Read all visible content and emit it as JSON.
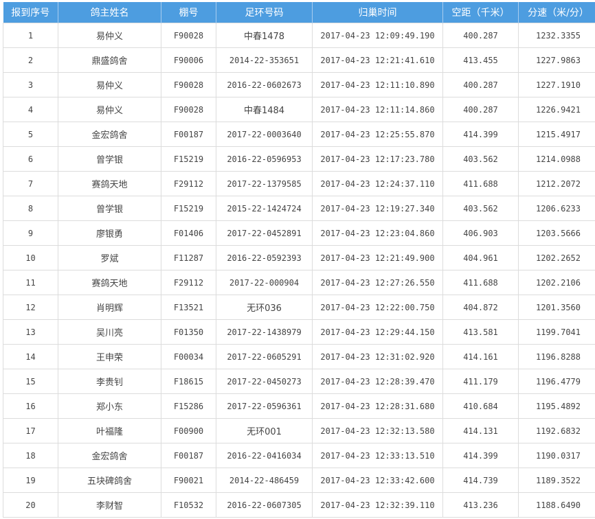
{
  "header_color": "#4d9de0",
  "columns": [
    "报到序号",
    "鸽主姓名",
    "棚号",
    "足环号码",
    "归巢时间",
    "空距（千米）",
    "分速（米/分）"
  ],
  "rows": [
    [
      "1",
      "易仲义",
      "F90028",
      "中春1478",
      "2017-04-23 12:09:49.190",
      "400.287",
      "1232.3355"
    ],
    [
      "2",
      "鼎盛鸽舍",
      "F90006",
      "2014-22-353651",
      "2017-04-23 12:21:41.610",
      "413.455",
      "1227.9863"
    ],
    [
      "3",
      "易仲义",
      "F90028",
      "2016-22-0602673",
      "2017-04-23 12:11:10.890",
      "400.287",
      "1227.1910"
    ],
    [
      "4",
      "易仲义",
      "F90028",
      "中春1484",
      "2017-04-23 12:11:14.860",
      "400.287",
      "1226.9421"
    ],
    [
      "5",
      "金宏鸽舍",
      "F00187",
      "2017-22-0003640",
      "2017-04-23 12:25:55.870",
      "414.399",
      "1215.4917"
    ],
    [
      "6",
      "曾学银",
      "F15219",
      "2016-22-0596953",
      "2017-04-23 12:17:23.780",
      "403.562",
      "1214.0988"
    ],
    [
      "7",
      "赛鸽天地",
      "F29112",
      "2017-22-1379585",
      "2017-04-23 12:24:37.110",
      "411.688",
      "1212.2072"
    ],
    [
      "8",
      "曾学银",
      "F15219",
      "2015-22-1424724",
      "2017-04-23 12:19:27.340",
      "403.562",
      "1206.6233"
    ],
    [
      "9",
      "廖银勇",
      "F01406",
      "2017-22-0452891",
      "2017-04-23 12:23:04.860",
      "406.903",
      "1203.5666"
    ],
    [
      "10",
      "罗斌",
      "F11287",
      "2016-22-0592393",
      "2017-04-23 12:21:49.900",
      "404.961",
      "1202.2652"
    ],
    [
      "11",
      "赛鸽天地",
      "F29112",
      "2017-22-000904",
      "2017-04-23 12:27:26.550",
      "411.688",
      "1202.2106"
    ],
    [
      "12",
      "肖明辉",
      "F13521",
      "无环036",
      "2017-04-23 12:22:00.750",
      "404.872",
      "1201.3560"
    ],
    [
      "13",
      "吴川亮",
      "F01350",
      "2017-22-1438979",
      "2017-04-23 12:29:44.150",
      "413.581",
      "1199.7041"
    ],
    [
      "14",
      "王申荣",
      "F00034",
      "2017-22-0605291",
      "2017-04-23 12:31:02.920",
      "414.161",
      "1196.8288"
    ],
    [
      "15",
      "李贵钊",
      "F18615",
      "2017-22-0450273",
      "2017-04-23 12:28:39.470",
      "411.179",
      "1196.4779"
    ],
    [
      "16",
      "郑小东",
      "F15286",
      "2017-22-0596361",
      "2017-04-23 12:28:31.680",
      "410.684",
      "1195.4892"
    ],
    [
      "17",
      "叶福隆",
      "F00900",
      "无环001",
      "2017-04-23 12:32:13.580",
      "414.131",
      "1192.6832"
    ],
    [
      "18",
      "金宏鸽舍",
      "F00187",
      "2016-22-0416034",
      "2017-04-23 12:33:13.510",
      "414.399",
      "1190.0317"
    ],
    [
      "19",
      "五块碑鸽舍",
      "F90021",
      "2014-22-486459",
      "2017-04-23 12:33:42.600",
      "414.739",
      "1189.3522"
    ],
    [
      "20",
      "李财智",
      "F10532",
      "2016-22-0607305",
      "2017-04-23 12:32:39.110",
      "413.236",
      "1188.6490"
    ]
  ]
}
